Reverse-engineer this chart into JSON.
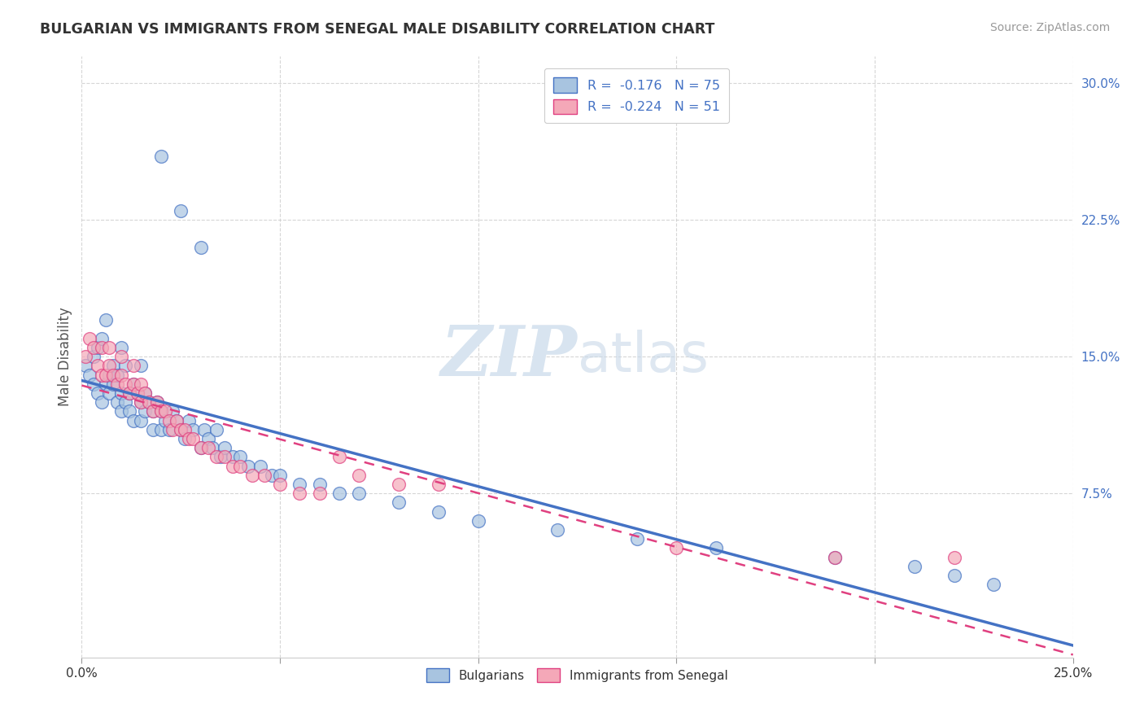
{
  "title": "BULGARIAN VS IMMIGRANTS FROM SENEGAL MALE DISABILITY CORRELATION CHART",
  "source": "Source: ZipAtlas.com",
  "ylabel": "Male Disability",
  "watermark_zip": "ZIP",
  "watermark_atlas": "atlas",
  "legend_r1": "R =  -0.176   N = 75",
  "legend_r2": "R =  -0.224   N = 51",
  "legend_label1": "Bulgarians",
  "legend_label2": "Immigrants from Senegal",
  "xlim": [
    0.0,
    0.25
  ],
  "ylim": [
    -0.015,
    0.315
  ],
  "x_ticks": [
    0.0,
    0.05,
    0.1,
    0.15,
    0.2,
    0.25
  ],
  "x_tick_labels": [
    "0.0%",
    "",
    "",
    "",
    "",
    "25.0%"
  ],
  "y_ticks": [
    0.075,
    0.15,
    0.225,
    0.3
  ],
  "y_tick_labels": [
    "7.5%",
    "15.0%",
    "22.5%",
    "30.0%"
  ],
  "color_bulgarian": "#a8c4e0",
  "color_senegal": "#f4a8b8",
  "line_color_bulgarian": "#4472c4",
  "line_color_senegal": "#e04080",
  "bg_color": "#ffffff",
  "grid_color": "#cccccc",
  "bulgarians_x": [
    0.001,
    0.002,
    0.003,
    0.003,
    0.004,
    0.004,
    0.005,
    0.005,
    0.006,
    0.006,
    0.007,
    0.007,
    0.008,
    0.008,
    0.009,
    0.009,
    0.01,
    0.01,
    0.01,
    0.011,
    0.011,
    0.012,
    0.012,
    0.013,
    0.013,
    0.014,
    0.015,
    0.015,
    0.015,
    0.016,
    0.016,
    0.017,
    0.018,
    0.018,
    0.019,
    0.02,
    0.02,
    0.021,
    0.022,
    0.023,
    0.024,
    0.025,
    0.026,
    0.027,
    0.028,
    0.03,
    0.031,
    0.032,
    0.033,
    0.034,
    0.035,
    0.036,
    0.038,
    0.04,
    0.042,
    0.045,
    0.048,
    0.05,
    0.055,
    0.06,
    0.065,
    0.07,
    0.08,
    0.09,
    0.1,
    0.12,
    0.14,
    0.16,
    0.19,
    0.21,
    0.22,
    0.23,
    0.02,
    0.025,
    0.03
  ],
  "bulgarians_y": [
    0.145,
    0.14,
    0.135,
    0.15,
    0.13,
    0.155,
    0.125,
    0.16,
    0.135,
    0.17,
    0.13,
    0.14,
    0.135,
    0.145,
    0.125,
    0.14,
    0.155,
    0.13,
    0.12,
    0.125,
    0.145,
    0.13,
    0.12,
    0.135,
    0.115,
    0.13,
    0.145,
    0.125,
    0.115,
    0.13,
    0.12,
    0.125,
    0.12,
    0.11,
    0.125,
    0.12,
    0.11,
    0.115,
    0.11,
    0.12,
    0.115,
    0.11,
    0.105,
    0.115,
    0.11,
    0.1,
    0.11,
    0.105,
    0.1,
    0.11,
    0.095,
    0.1,
    0.095,
    0.095,
    0.09,
    0.09,
    0.085,
    0.085,
    0.08,
    0.08,
    0.075,
    0.075,
    0.07,
    0.065,
    0.06,
    0.055,
    0.05,
    0.045,
    0.04,
    0.035,
    0.03,
    0.025,
    0.26,
    0.23,
    0.21
  ],
  "senegal_x": [
    0.001,
    0.002,
    0.003,
    0.004,
    0.005,
    0.005,
    0.006,
    0.007,
    0.007,
    0.008,
    0.009,
    0.01,
    0.01,
    0.011,
    0.012,
    0.013,
    0.013,
    0.014,
    0.015,
    0.015,
    0.016,
    0.017,
    0.018,
    0.019,
    0.02,
    0.021,
    0.022,
    0.023,
    0.024,
    0.025,
    0.026,
    0.027,
    0.028,
    0.03,
    0.032,
    0.034,
    0.036,
    0.038,
    0.04,
    0.043,
    0.046,
    0.05,
    0.055,
    0.06,
    0.065,
    0.07,
    0.08,
    0.09,
    0.15,
    0.19,
    0.22
  ],
  "senegal_y": [
    0.15,
    0.16,
    0.155,
    0.145,
    0.14,
    0.155,
    0.14,
    0.145,
    0.155,
    0.14,
    0.135,
    0.14,
    0.15,
    0.135,
    0.13,
    0.135,
    0.145,
    0.13,
    0.135,
    0.125,
    0.13,
    0.125,
    0.12,
    0.125,
    0.12,
    0.12,
    0.115,
    0.11,
    0.115,
    0.11,
    0.11,
    0.105,
    0.105,
    0.1,
    0.1,
    0.095,
    0.095,
    0.09,
    0.09,
    0.085,
    0.085,
    0.08,
    0.075,
    0.075,
    0.095,
    0.085,
    0.08,
    0.08,
    0.045,
    0.04,
    0.04
  ]
}
